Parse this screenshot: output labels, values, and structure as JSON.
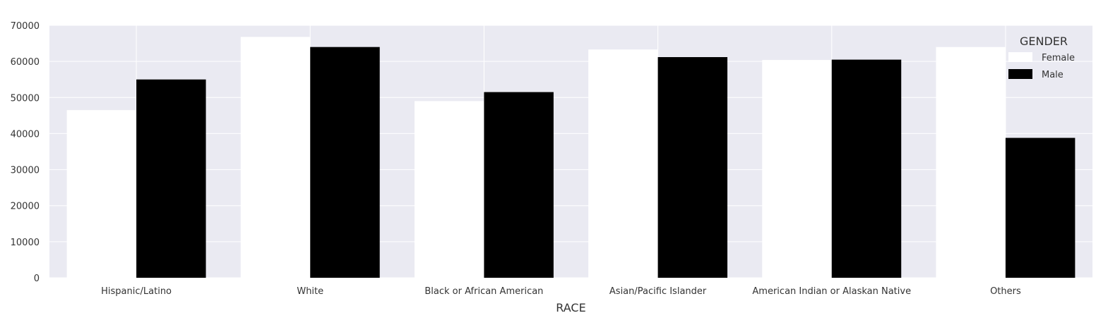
{
  "chart_data": {
    "type": "bar",
    "title": "",
    "xlabel": "RACE",
    "ylabel": "",
    "categories": [
      "Hispanic/Latino",
      "White",
      "Black or African American",
      "Asian/Pacific Islander",
      "American Indian or Alaskan Native",
      "Others"
    ],
    "series": [
      {
        "name": "Female",
        "color": "#ffffff",
        "values": [
          46500,
          66800,
          49000,
          63300,
          60400,
          64000
        ]
      },
      {
        "name": "Male",
        "color": "#000000",
        "values": [
          55000,
          64000,
          51500,
          61200,
          60500,
          38800
        ]
      }
    ],
    "ylim": [
      0,
      70000
    ],
    "yticks": [
      0,
      10000,
      20000,
      30000,
      40000,
      50000,
      60000,
      70000
    ],
    "grid": true,
    "background": "#eaeaf2",
    "legend": {
      "title": "GENDER",
      "placement": "top-right"
    }
  }
}
